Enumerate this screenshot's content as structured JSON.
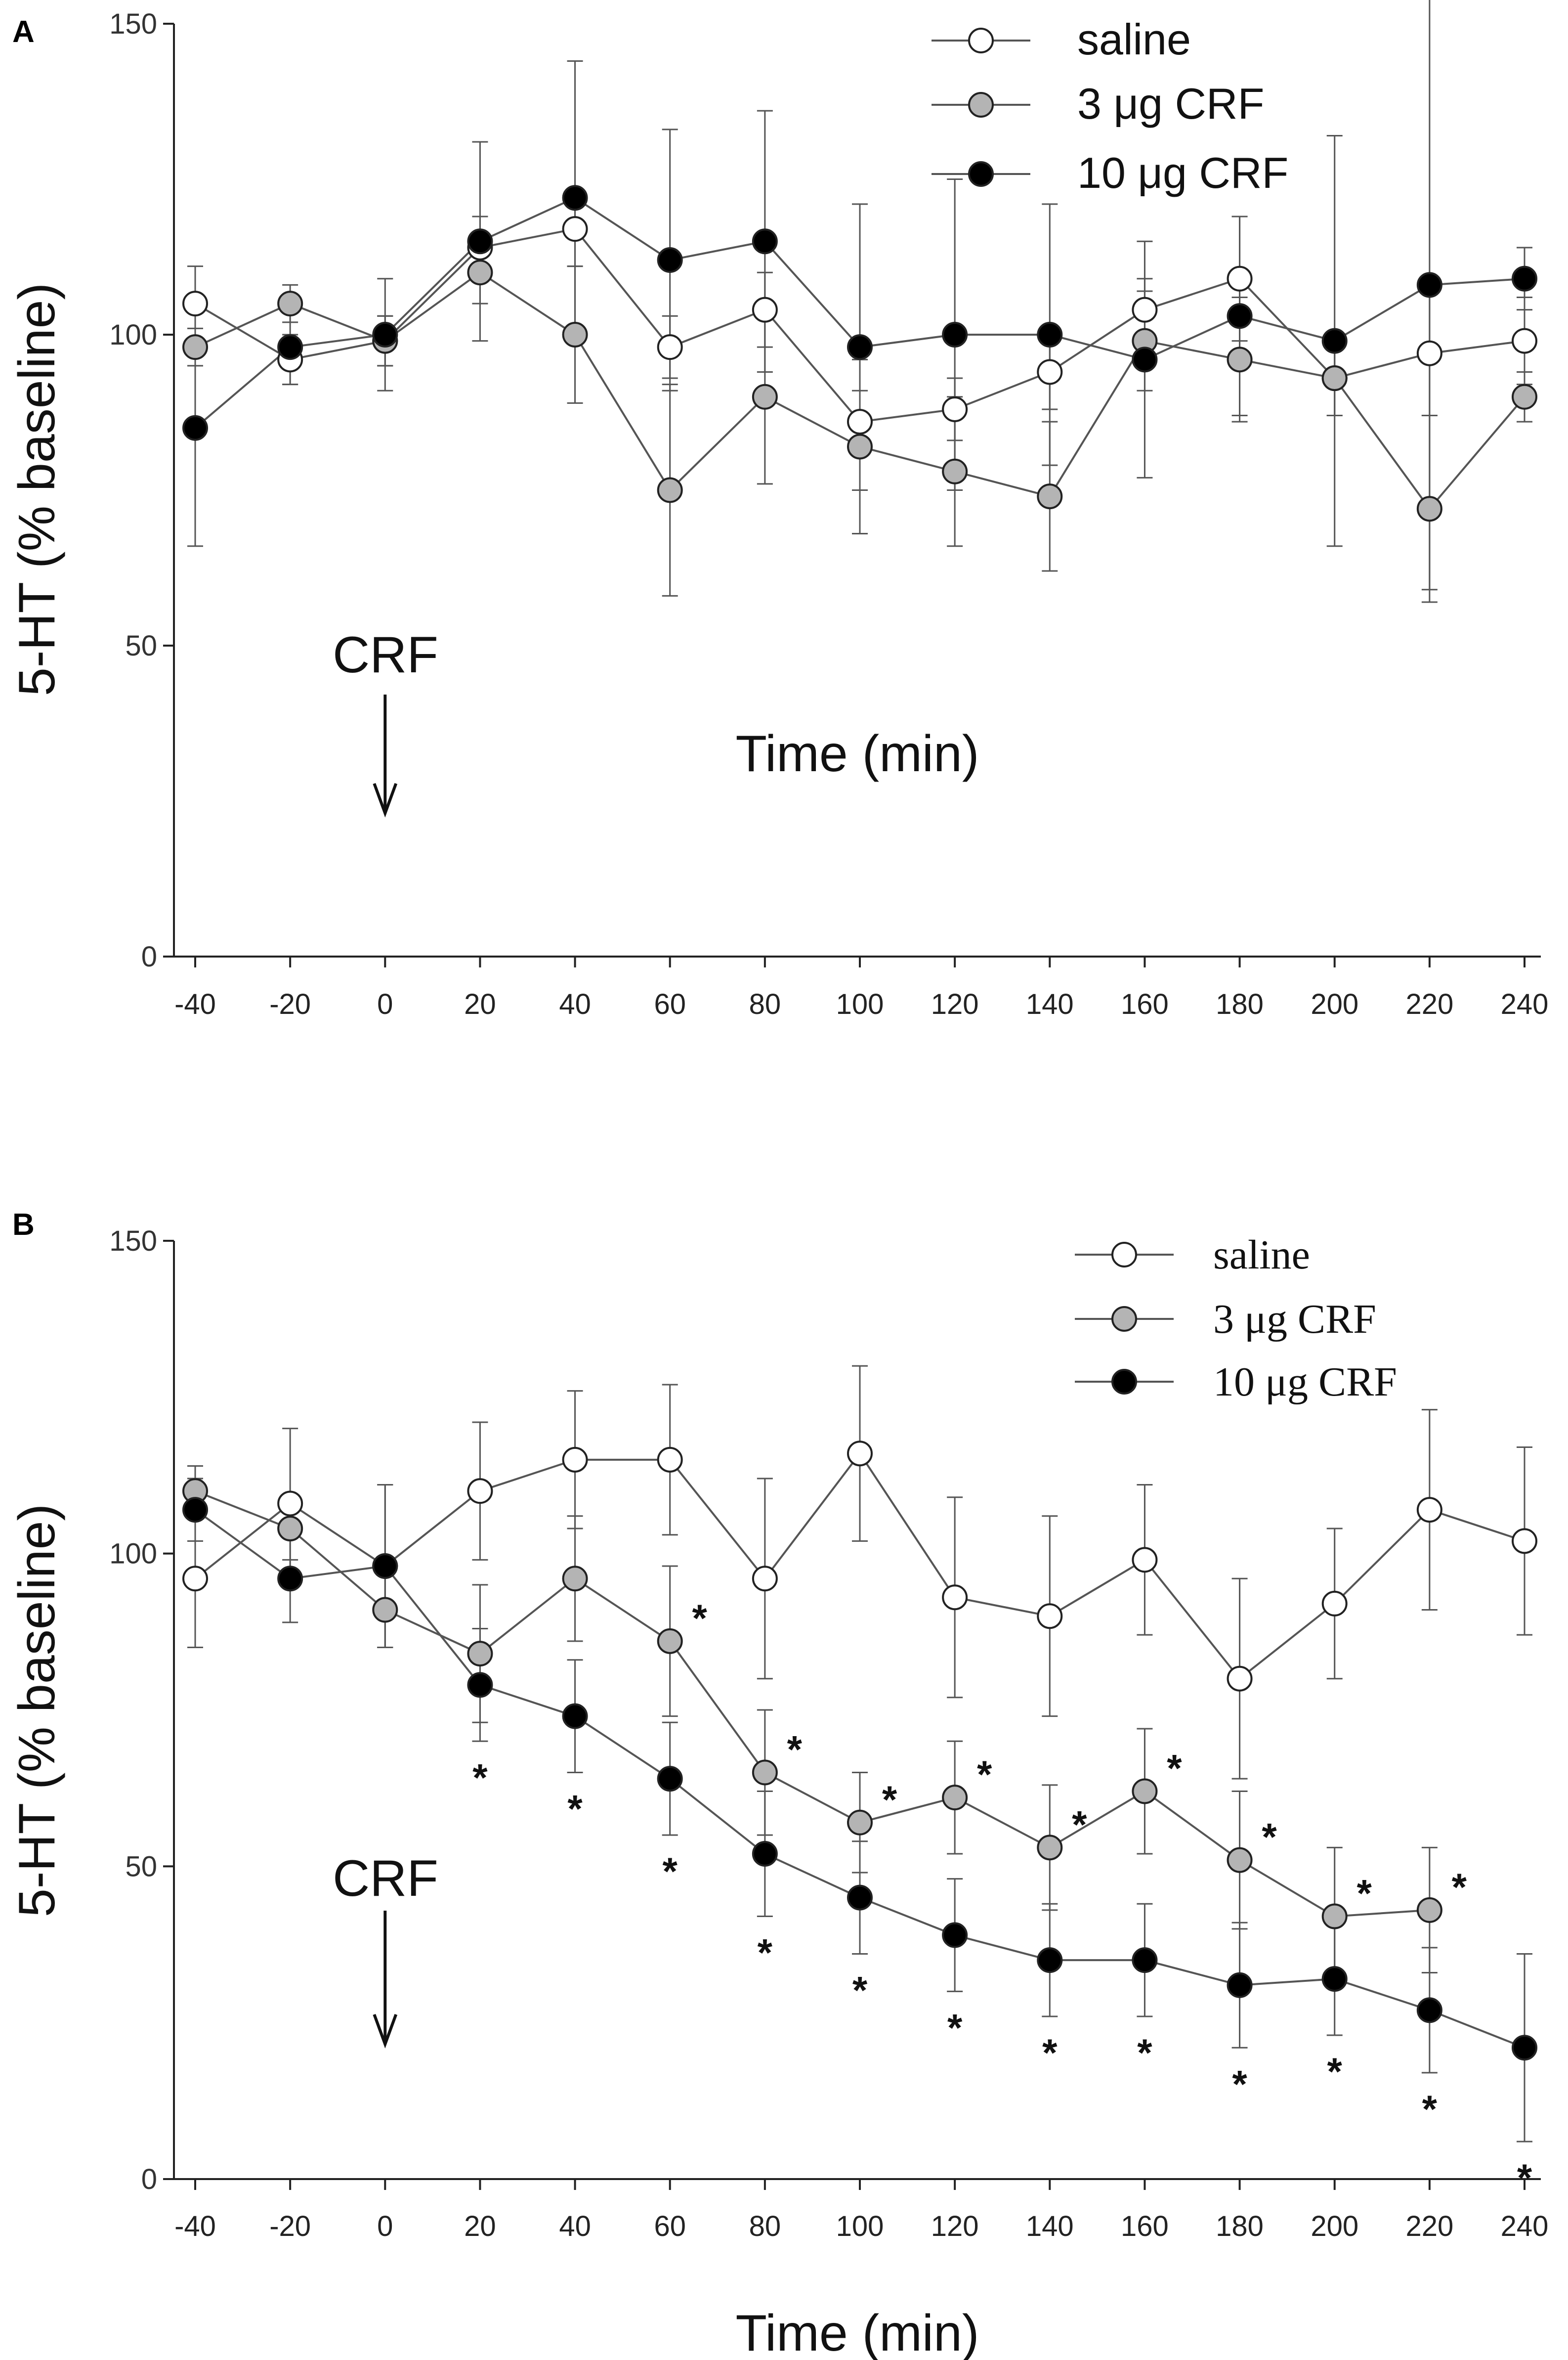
{
  "chart_data": [
    {
      "panel": "A",
      "type": "line",
      "xlabel": "Time (min)",
      "ylabel": "5-HT (% baseline)",
      "ylim": [
        0,
        150
      ],
      "xlim": [
        -40,
        240
      ],
      "x_ticks": [
        -40,
        -20,
        0,
        20,
        40,
        60,
        80,
        100,
        120,
        140,
        160,
        180,
        200,
        220,
        240
      ],
      "y_ticks": [
        0,
        50,
        100,
        150
      ],
      "legend_placement": "top-right",
      "annotation": {
        "text": "CRF",
        "x": 0,
        "arrow": "down"
      },
      "series": [
        {
          "name": "saline",
          "fill": "#ffffff",
          "x": [
            -40,
            -20,
            0,
            20,
            40,
            60,
            80,
            100,
            120,
            140,
            160,
            180,
            200,
            220,
            240
          ],
          "values": [
            105,
            96,
            99,
            114,
            117,
            98,
            104,
            86,
            88,
            94,
            104,
            109,
            93,
            97,
            99
          ],
          "errors": [
            6,
            4,
            4,
            5,
            6,
            5,
            6,
            5,
            5,
            6,
            5,
            10,
            6,
            10,
            7
          ]
        },
        {
          "name": "3 μg CRF",
          "fill": "#b4b4b4",
          "x": [
            -40,
            -20,
            0,
            20,
            40,
            60,
            80,
            100,
            120,
            140,
            160,
            180,
            200,
            220,
            240
          ],
          "values": [
            98,
            105,
            99,
            110,
            100,
            75,
            90,
            82,
            78,
            74,
            99,
            96,
            93,
            72,
            90
          ],
          "errors": [
            3,
            3,
            4,
            5,
            11,
            17,
            14,
            14,
            12,
            12,
            8,
            10,
            6,
            15,
            4
          ]
        },
        {
          "name": "10 μg CRF",
          "fill": "#000000",
          "x": [
            -40,
            -20,
            0,
            20,
            40,
            60,
            80,
            100,
            120,
            140,
            160,
            180,
            200,
            220,
            240
          ],
          "values": [
            85,
            98,
            100,
            115,
            122,
            112,
            115,
            98,
            100,
            100,
            96,
            103,
            99,
            108,
            109
          ],
          "errors": [
            19,
            6,
            9,
            16,
            22,
            21,
            21,
            23,
            25,
            21,
            19,
            16,
            33,
            49,
            5
          ]
        }
      ],
      "significance": []
    },
    {
      "panel": "B",
      "type": "line",
      "xlabel": "Time (min)",
      "ylabel": "5-HT (% baseline)",
      "ylim": [
        0,
        150
      ],
      "xlim": [
        -40,
        240
      ],
      "x_ticks": [
        -40,
        -20,
        0,
        20,
        40,
        60,
        80,
        100,
        120,
        140,
        160,
        180,
        200,
        220,
        240
      ],
      "y_ticks": [
        0,
        50,
        100,
        150
      ],
      "legend_placement": "top-right",
      "annotation": {
        "text": "CRF",
        "x": 0,
        "arrow": "down"
      },
      "series": [
        {
          "name": "saline",
          "fill": "#ffffff",
          "x": [
            -40,
            -20,
            0,
            20,
            40,
            60,
            80,
            100,
            120,
            140,
            160,
            180,
            200,
            220,
            240
          ],
          "values": [
            96,
            108,
            98,
            110,
            115,
            115,
            96,
            116,
            93,
            90,
            99,
            80,
            92,
            107,
            102
          ],
          "errors": [
            11,
            12,
            13,
            11,
            11,
            12,
            16,
            14,
            16,
            16,
            12,
            16,
            12,
            16,
            15
          ]
        },
        {
          "name": "3 μg CRF",
          "fill": "#b4b4b4",
          "x": [
            -40,
            -20,
            0,
            20,
            40,
            60,
            80,
            100,
            120,
            140,
            160,
            180,
            200,
            220,
            240
          ],
          "values": [
            110,
            104,
            91,
            84,
            96,
            86,
            65,
            57,
            61,
            53,
            62,
            51,
            42,
            43,
            null
          ],
          "errors": [
            4,
            5,
            6,
            11,
            10,
            12,
            10,
            8,
            9,
            10,
            10,
            11,
            11,
            10,
            null
          ]
        },
        {
          "name": "10 μg CRF",
          "fill": "#000000",
          "x": [
            -40,
            -20,
            0,
            20,
            40,
            60,
            80,
            100,
            120,
            140,
            160,
            180,
            200,
            220,
            240
          ],
          "values": [
            107,
            96,
            98,
            79,
            74,
            64,
            52,
            45,
            39,
            35,
            35,
            31,
            32,
            27,
            21
          ],
          "errors": [
            5,
            7,
            13,
            9,
            9,
            9,
            10,
            9,
            9,
            9,
            9,
            10,
            9,
            10,
            15
          ]
        }
      ],
      "significance": [
        {
          "series": "10 μg CRF",
          "x": [
            20,
            40,
            60,
            80,
            100,
            120,
            140,
            160,
            180,
            200,
            220,
            240
          ]
        },
        {
          "series": "3 μg CRF",
          "x": [
            60,
            80,
            100,
            120,
            140,
            160,
            180,
            200,
            220
          ]
        }
      ]
    }
  ]
}
